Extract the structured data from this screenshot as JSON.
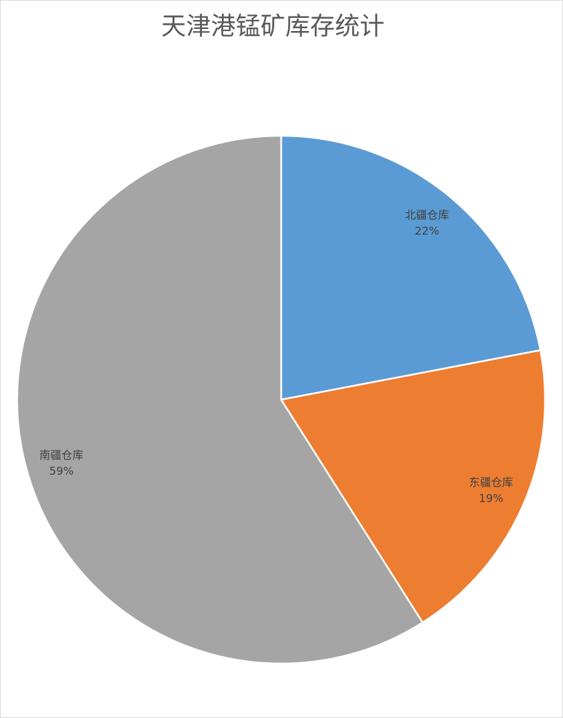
{
  "chart_data": {
    "type": "pie",
    "title": "天津港锰矿库存统计",
    "categories": [
      "北疆仓库",
      "东疆仓库",
      "南疆仓库"
    ],
    "values": [
      22,
      19,
      59
    ],
    "value_labels": [
      "22%",
      "19%",
      "59%"
    ],
    "colors": [
      "#5b9bd5",
      "#ed7d31",
      "#a5a5a5"
    ]
  }
}
